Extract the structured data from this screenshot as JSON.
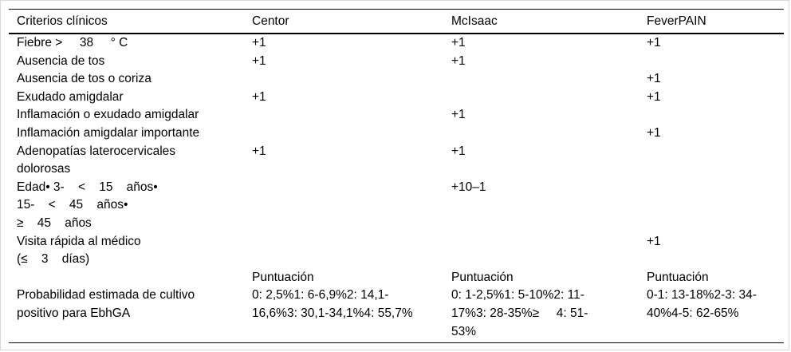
{
  "table": {
    "columns": [
      "Criterios clínicos",
      "Centor",
      "McIsaac",
      "FeverPAIN"
    ],
    "rows": [
      [
        "Fiebre >     38     ° C",
        "+1",
        "+1",
        "+1"
      ],
      [
        "Ausencia de tos",
        "+1",
        "+1",
        ""
      ],
      [
        "Ausencia de tos o coriza",
        "",
        "",
        "+1"
      ],
      [
        "Exudado amigdalar",
        "+1",
        "",
        "+1"
      ],
      [
        "Inflamación o exudado amigdalar",
        "",
        "+1",
        ""
      ],
      [
        "Inflamación amigdalar importante",
        "",
        "",
        "+1"
      ],
      [
        "Adenopatías laterocervicales\ndolorosas",
        "+1",
        "+1",
        ""
      ],
      [
        "Edad• 3-    <    15    años•\n15-    <    45    años•\n≥    45    años",
        "",
        "+10–1",
        ""
      ],
      [
        "Visita rápida al médico\n(≤    3    días)",
        "",
        "",
        "+1"
      ],
      [
        "",
        "Puntuación",
        "Puntuación",
        "Puntuación"
      ],
      [
        "Probabilidad estimada de cultivo\npositivo para EbhGA",
        "0: 2,5%1: 6-6,9%2: 14,1-\n16,6%3: 30,1-34,1%4: 55,7%",
        "0: 1-2,5%1: 5-10%2: 11-\n17%3: 28-35%≥     4: 51-\n53%",
        "0-1: 13-18%2-3: 34-\n40%4-5: 62-65%"
      ]
    ]
  }
}
